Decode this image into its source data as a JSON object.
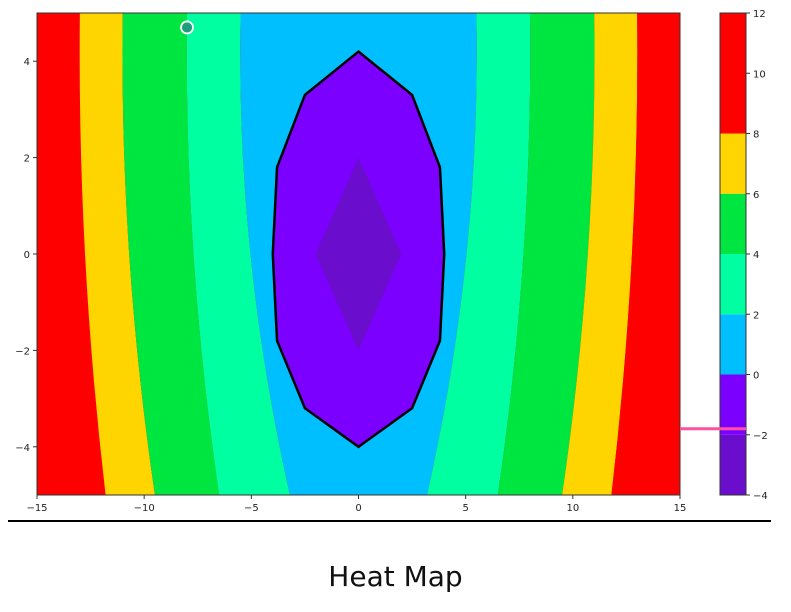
{
  "chart_data": {
    "type": "contour",
    "title": "",
    "xlabel": "",
    "ylabel": "",
    "xlim": [
      -15,
      15
    ],
    "ylim": [
      -5,
      5
    ],
    "x_ticks": [
      {
        "value": -15,
        "label": "−15"
      },
      {
        "value": -10,
        "label": "−10"
      },
      {
        "value": -5,
        "label": "−5"
      },
      {
        "value": 0,
        "label": "0"
      },
      {
        "value": 5,
        "label": "5"
      },
      {
        "value": 10,
        "label": "10"
      },
      {
        "value": 15,
        "label": "15"
      }
    ],
    "y_ticks": [
      {
        "value": 4,
        "label": "4"
      },
      {
        "value": 2,
        "label": "2"
      },
      {
        "value": 0,
        "label": "0"
      },
      {
        "value": -2,
        "label": "−2"
      },
      {
        "value": -4,
        "label": "−4"
      }
    ],
    "colorbar": {
      "range": [
        -4,
        12
      ],
      "ticks": [
        {
          "value": 12,
          "label": "12"
        },
        {
          "value": 10,
          "label": "10"
        },
        {
          "value": 8,
          "label": "8"
        },
        {
          "value": 6,
          "label": "6"
        },
        {
          "value": 4,
          "label": "4"
        },
        {
          "value": 2,
          "label": "2"
        },
        {
          "value": 0,
          "label": "0"
        },
        {
          "value": -2,
          "label": "−2"
        },
        {
          "value": -4,
          "label": "−4"
        }
      ]
    },
    "levels": [
      {
        "min": -4,
        "max": -2,
        "color": "#6a0dcc"
      },
      {
        "min": -2,
        "max": 0,
        "color": "#7b00ff"
      },
      {
        "min": 0,
        "max": 2,
        "color": "#00bfff"
      },
      {
        "min": 2,
        "max": 4,
        "color": "#00ffa0"
      },
      {
        "min": 4,
        "max": 6,
        "color": "#00e640"
      },
      {
        "min": 6,
        "max": 8,
        "color": "#ffd500"
      },
      {
        "min": 8,
        "max": 12,
        "color": "#ff0000"
      }
    ],
    "contour_bands": [
      {
        "name": "inner-dark-purple",
        "color": "#6a0dcc",
        "points": [
          [
            0,
            2
          ],
          [
            2,
            0
          ],
          [
            0,
            -2
          ],
          [
            -2,
            0
          ]
        ]
      },
      {
        "name": "purple-region",
        "color": "#7b00ff",
        "points": [
          [
            0,
            4.2
          ],
          [
            2.5,
            3.3
          ],
          [
            3.8,
            1.8
          ],
          [
            4,
            0
          ],
          [
            3.8,
            -1.8
          ],
          [
            2.5,
            -3.2
          ],
          [
            0,
            -4
          ],
          [
            -2.5,
            -3.2
          ],
          [
            -3.8,
            -1.8
          ],
          [
            -4,
            0
          ],
          [
            -3.8,
            1.8
          ],
          [
            -2.5,
            3.3
          ]
        ]
      }
    ],
    "vertical_bands": [
      {
        "color": "#ff0000",
        "top_x": [
          -15,
          -13
        ],
        "bottom_x": [
          -15,
          -11.8
        ]
      },
      {
        "color": "#ffd500",
        "top_x": [
          -13,
          -11
        ],
        "bottom_x": [
          -11.8,
          -9.5
        ]
      },
      {
        "color": "#00e640",
        "top_x": [
          -11,
          -8
        ],
        "bottom_x": [
          -9.5,
          -6.5
        ]
      },
      {
        "color": "#00ffa0",
        "top_x": [
          -8,
          -5.5
        ],
        "bottom_x": [
          -6.5,
          -3.2
        ]
      },
      {
        "color": "#00bfff",
        "top_x": [
          -5.5,
          5.5
        ],
        "bottom_x": [
          -3.2,
          3.2
        ]
      },
      {
        "color": "#00ffa0",
        "top_x": [
          5.5,
          8
        ],
        "bottom_x": [
          3.2,
          6.5
        ]
      },
      {
        "color": "#00e640",
        "top_x": [
          8,
          11
        ],
        "bottom_x": [
          6.5,
          9.5
        ]
      },
      {
        "color": "#ffd500",
        "top_x": [
          11,
          13
        ],
        "bottom_x": [
          9.5,
          11.8
        ]
      },
      {
        "color": "#ff0000",
        "top_x": [
          13,
          15
        ],
        "bottom_x": [
          11.8,
          15
        ]
      }
    ],
    "marker": {
      "x": -8,
      "y": 4.7,
      "color": "#1a9f7a"
    },
    "highlight_value": -1.8
  },
  "caption": "Heat Map"
}
